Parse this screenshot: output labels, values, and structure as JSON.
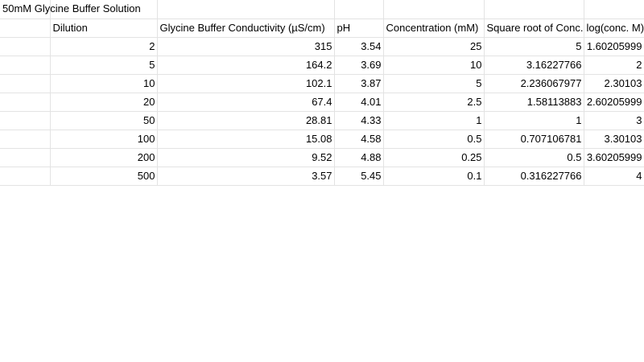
{
  "sheet": {
    "title": "50mM Glycine Buffer Solution",
    "headers": [
      "",
      "Dilution",
      "Glycine Buffer Conductivity (µS/cm)",
      "pH",
      "Concentration (mM)",
      "Square root of Conc.",
      "log(conc. M)"
    ],
    "rows": [
      [
        "",
        "2",
        "315",
        "3.54",
        "25",
        "5",
        "1.60205999"
      ],
      [
        "",
        "5",
        "164.2",
        "3.69",
        "10",
        "3.16227766",
        "2"
      ],
      [
        "",
        "10",
        "102.1",
        "3.87",
        "5",
        "2.236067977",
        "2.30103"
      ],
      [
        "",
        "20",
        "67.4",
        "4.01",
        "2.5",
        "1.58113883",
        "2.60205999"
      ],
      [
        "",
        "50",
        "28.81",
        "4.33",
        "1",
        "1",
        "3"
      ],
      [
        "",
        "100",
        "15.08",
        "4.58",
        "0.5",
        "0.707106781",
        "3.30103"
      ],
      [
        "",
        "200",
        "9.52",
        "4.88",
        "0.25",
        "0.5",
        "3.60205999"
      ],
      [
        "",
        "500",
        "3.57",
        "5.45",
        "0.1",
        "0.316227766",
        "4"
      ]
    ]
  }
}
